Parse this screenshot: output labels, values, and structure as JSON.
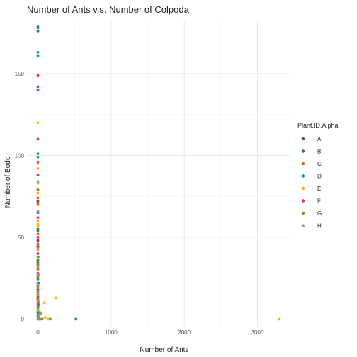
{
  "chart_data": {
    "type": "scatter",
    "title": "Number of Ants v.s. Number of Colpoda",
    "xlabel": "Number of Ants",
    "ylabel": "Number of Bodo",
    "xlim": [
      -150,
      3450
    ],
    "ylim": [
      -5,
      182
    ],
    "xticks": [
      0,
      1000,
      2000,
      3000
    ],
    "yticks": [
      0,
      50,
      100,
      150
    ],
    "grid": true,
    "legend": {
      "title": "Plant.ID.Alpha",
      "position": "right"
    },
    "series": [
      {
        "name": "A",
        "color": "#7b3294",
        "points": [
          [
            0,
            2
          ],
          [
            5,
            9
          ],
          [
            0,
            15
          ],
          [
            8,
            22
          ],
          [
            0,
            30
          ],
          [
            3,
            38
          ],
          [
            0,
            48
          ],
          [
            2,
            3
          ],
          [
            0,
            72
          ],
          [
            12,
            1
          ],
          [
            0,
            12
          ],
          [
            4,
            27
          ]
        ]
      },
      {
        "name": "B",
        "color": "#2c6e7f",
        "points": [
          [
            0,
            178
          ],
          [
            0,
            176
          ],
          [
            0,
            0
          ],
          [
            520,
            0
          ],
          [
            2,
            4
          ],
          [
            0,
            20
          ],
          [
            6,
            1
          ],
          [
            0,
            55
          ],
          [
            3,
            11
          ],
          [
            0,
            33
          ]
        ]
      },
      {
        "name": "C",
        "color": "#d95f02",
        "points": [
          [
            0,
            79
          ],
          [
            0,
            74
          ],
          [
            0,
            71
          ],
          [
            0,
            70
          ],
          [
            0,
            52
          ],
          [
            0,
            45
          ],
          [
            0,
            40
          ],
          [
            0,
            35
          ],
          [
            0,
            25
          ],
          [
            0,
            18
          ],
          [
            0,
            14
          ],
          [
            60,
            0
          ],
          [
            2,
            6
          ],
          [
            4,
            10
          ],
          [
            0,
            28
          ],
          [
            8,
            3
          ]
        ]
      },
      {
        "name": "D",
        "color": "#009e73",
        "points": [
          [
            0,
            179
          ],
          [
            0,
            163
          ],
          [
            0,
            161
          ],
          [
            0,
            142
          ],
          [
            0,
            101
          ],
          [
            0,
            99
          ],
          [
            0,
            65
          ],
          [
            0,
            54
          ],
          [
            0,
            44
          ],
          [
            0,
            24
          ],
          [
            0,
            4
          ],
          [
            3,
            8
          ],
          [
            0,
            16
          ],
          [
            15,
            1
          ],
          [
            0,
            36
          ]
        ]
      },
      {
        "name": "E",
        "color": "#f0b400",
        "points": [
          [
            0,
            120
          ],
          [
            0,
            95
          ],
          [
            0,
            92
          ],
          [
            0,
            83
          ],
          [
            0,
            77
          ],
          [
            0,
            60
          ],
          [
            0,
            58
          ],
          [
            0,
            57
          ],
          [
            0,
            50
          ],
          [
            0,
            42
          ],
          [
            0,
            30
          ],
          [
            0,
            20
          ],
          [
            0,
            6
          ],
          [
            90,
            10
          ],
          [
            250,
            13
          ],
          [
            100,
            1
          ],
          [
            140,
            0
          ],
          [
            3300,
            0
          ],
          [
            30,
            3
          ],
          [
            0,
            46
          ],
          [
            5,
            15
          ]
        ]
      },
      {
        "name": "F",
        "color": "#e7298a",
        "points": [
          [
            0,
            149
          ],
          [
            0,
            140
          ],
          [
            0,
            110
          ],
          [
            0,
            96
          ],
          [
            0,
            88
          ],
          [
            0,
            62
          ],
          [
            0,
            50
          ],
          [
            0,
            40
          ],
          [
            0,
            34
          ],
          [
            0,
            28
          ],
          [
            0,
            22
          ],
          [
            0,
            18
          ],
          [
            0,
            13
          ],
          [
            0,
            9
          ],
          [
            0,
            5
          ],
          [
            20,
            0
          ],
          [
            4,
            2
          ],
          [
            0,
            31
          ],
          [
            0,
            44
          ]
        ]
      },
      {
        "name": "G",
        "color": "#66a61e",
        "points": [
          [
            0,
            46
          ],
          [
            0,
            38
          ],
          [
            0,
            26
          ],
          [
            0,
            17
          ],
          [
            0,
            12
          ],
          [
            0,
            7
          ],
          [
            30,
            4
          ],
          [
            50,
            0
          ],
          [
            170,
            0
          ],
          [
            6,
            1
          ],
          [
            0,
            20
          ],
          [
            12,
            2
          ],
          [
            0,
            33
          ]
        ]
      },
      {
        "name": "H",
        "color": "#999999",
        "points": [
          [
            0,
            84
          ],
          [
            0,
            66
          ],
          [
            0,
            43
          ],
          [
            0,
            32
          ],
          [
            0,
            21
          ],
          [
            0,
            11
          ],
          [
            0,
            5
          ],
          [
            10,
            2
          ],
          [
            40,
            3
          ],
          [
            0,
            15
          ],
          [
            5,
            0
          ],
          [
            0,
            27
          ]
        ]
      }
    ]
  }
}
